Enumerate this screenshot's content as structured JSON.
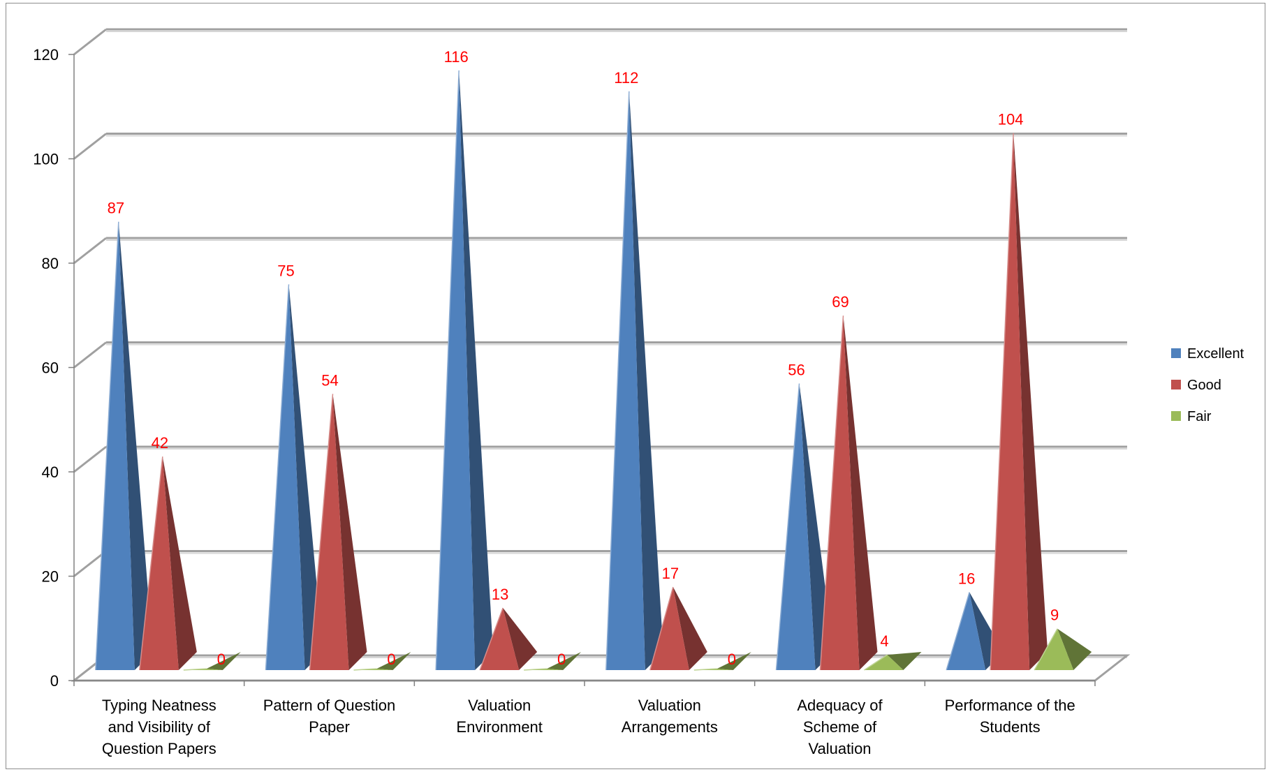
{
  "chart_data": {
    "type": "bar",
    "style": "3d-pyramid",
    "categories": [
      [
        "Typing Neatness",
        "and Visibility  of",
        "Question Papers"
      ],
      [
        "Pattern of Question",
        "Paper"
      ],
      [
        "Valuation",
        "Environment"
      ],
      [
        "Valuation",
        "Arrangements"
      ],
      [
        "Adequacy of",
        "Scheme of",
        "Valuation"
      ],
      [
        "Performance of the",
        "Students"
      ]
    ],
    "series": [
      {
        "name": "Excellent",
        "color": "#4f81bd",
        "values": [
          87,
          75,
          116,
          112,
          56,
          16
        ]
      },
      {
        "name": "Good",
        "color": "#c0504d",
        "values": [
          42,
          54,
          13,
          17,
          69,
          104
        ]
      },
      {
        "name": "Fair",
        "color": "#9bbb59",
        "values": [
          0,
          0,
          0,
          0,
          4,
          9
        ]
      }
    ],
    "ylim": [
      0,
      120
    ],
    "yticks": [
      0,
      20,
      40,
      60,
      80,
      100,
      120
    ],
    "grid": true,
    "legend_position": "right",
    "data_label_color": "#ff0000"
  }
}
